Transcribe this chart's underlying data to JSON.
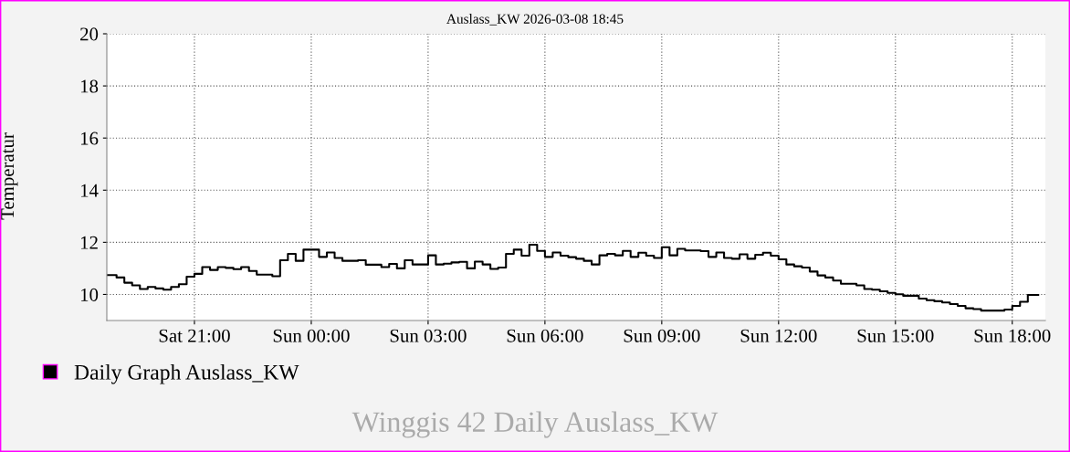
{
  "chart_data": {
    "type": "step",
    "title": "Auslass_KW 2026-03-08 18:45",
    "ylabel": "Temperatur",
    "annotations": [
      "Winggis 42 Daily Auslass_KW"
    ],
    "x": [
      "2026-03-07T18:45",
      "2026-03-07T19:00",
      "2026-03-07T19:12",
      "2026-03-07T19:24",
      "2026-03-07T19:36",
      "2026-03-07T19:48",
      "2026-03-07T20:00",
      "2026-03-07T20:12",
      "2026-03-07T20:24",
      "2026-03-07T20:36",
      "2026-03-07T20:48",
      "2026-03-07T21:00",
      "2026-03-07T21:12",
      "2026-03-07T21:24",
      "2026-03-07T21:36",
      "2026-03-07T21:48",
      "2026-03-07T22:00",
      "2026-03-07T22:12",
      "2026-03-07T22:24",
      "2026-03-07T22:36",
      "2026-03-07T22:48",
      "2026-03-07T23:00",
      "2026-03-07T23:12",
      "2026-03-07T23:24",
      "2026-03-07T23:36",
      "2026-03-07T23:48",
      "2026-03-08T00:00",
      "2026-03-08T00:12",
      "2026-03-08T00:24",
      "2026-03-08T00:36",
      "2026-03-08T00:48",
      "2026-03-08T01:00",
      "2026-03-08T01:12",
      "2026-03-08T01:24",
      "2026-03-08T01:36",
      "2026-03-08T01:48",
      "2026-03-08T02:00",
      "2026-03-08T02:12",
      "2026-03-08T02:24",
      "2026-03-08T02:36",
      "2026-03-08T02:48",
      "2026-03-08T03:00",
      "2026-03-08T03:12",
      "2026-03-08T03:24",
      "2026-03-08T03:36",
      "2026-03-08T03:48",
      "2026-03-08T04:00",
      "2026-03-08T04:12",
      "2026-03-08T04:24",
      "2026-03-08T04:36",
      "2026-03-08T04:48",
      "2026-03-08T05:00",
      "2026-03-08T05:12",
      "2026-03-08T05:24",
      "2026-03-08T05:36",
      "2026-03-08T05:48",
      "2026-03-08T06:00",
      "2026-03-08T06:12",
      "2026-03-08T06:24",
      "2026-03-08T06:36",
      "2026-03-08T06:48",
      "2026-03-08T07:00",
      "2026-03-08T07:12",
      "2026-03-08T07:24",
      "2026-03-08T07:36",
      "2026-03-08T07:48",
      "2026-03-08T08:00",
      "2026-03-08T08:12",
      "2026-03-08T08:24",
      "2026-03-08T08:36",
      "2026-03-08T08:48",
      "2026-03-08T09:00",
      "2026-03-08T09:12",
      "2026-03-08T09:24",
      "2026-03-08T09:36",
      "2026-03-08T09:48",
      "2026-03-08T10:00",
      "2026-03-08T10:12",
      "2026-03-08T10:24",
      "2026-03-08T10:36",
      "2026-03-08T10:48",
      "2026-03-08T11:00",
      "2026-03-08T11:12",
      "2026-03-08T11:24",
      "2026-03-08T11:36",
      "2026-03-08T11:48",
      "2026-03-08T12:00",
      "2026-03-08T12:12",
      "2026-03-08T12:24",
      "2026-03-08T12:36",
      "2026-03-08T12:48",
      "2026-03-08T13:00",
      "2026-03-08T13:12",
      "2026-03-08T13:24",
      "2026-03-08T13:36",
      "2026-03-08T13:48",
      "2026-03-08T14:00",
      "2026-03-08T14:12",
      "2026-03-08T14:24",
      "2026-03-08T14:36",
      "2026-03-08T14:48",
      "2026-03-08T15:00",
      "2026-03-08T15:12",
      "2026-03-08T15:24",
      "2026-03-08T15:36",
      "2026-03-08T15:48",
      "2026-03-08T16:00",
      "2026-03-08T16:12",
      "2026-03-08T16:24",
      "2026-03-08T16:36",
      "2026-03-08T16:48",
      "2026-03-08T17:00",
      "2026-03-08T17:12",
      "2026-03-08T17:24",
      "2026-03-08T17:36",
      "2026-03-08T17:48",
      "2026-03-08T18:00",
      "2026-03-08T18:12",
      "2026-03-08T18:24",
      "2026-03-08T18:36",
      "2026-03-08T18:40"
    ],
    "series": [
      {
        "name": "Daily Graph Auslass_KW",
        "color": "#000000",
        "values": [
          10.74,
          10.65,
          10.45,
          10.35,
          10.21,
          10.29,
          10.23,
          10.18,
          10.29,
          10.39,
          10.68,
          10.79,
          11.05,
          10.94,
          11.05,
          11.02,
          10.97,
          11.05,
          10.9,
          10.76,
          10.76,
          10.7,
          11.31,
          11.56,
          11.29,
          11.72,
          11.72,
          11.44,
          11.61,
          11.4,
          11.29,
          11.29,
          11.31,
          11.14,
          11.14,
          11.05,
          11.17,
          11.0,
          11.31,
          11.15,
          11.15,
          11.5,
          11.15,
          11.18,
          11.23,
          11.25,
          11.0,
          11.26,
          11.15,
          10.98,
          11.03,
          11.56,
          11.72,
          11.49,
          11.91,
          11.67,
          11.44,
          11.61,
          11.49,
          11.43,
          11.37,
          11.29,
          11.15,
          11.5,
          11.56,
          11.5,
          11.67,
          11.44,
          11.6,
          11.49,
          11.4,
          11.81,
          11.5,
          11.75,
          11.69,
          11.69,
          11.66,
          11.44,
          11.61,
          11.4,
          11.37,
          11.54,
          11.37,
          11.52,
          11.6,
          11.49,
          11.35,
          11.15,
          11.08,
          11.03,
          10.88,
          10.73,
          10.65,
          10.53,
          10.41,
          10.41,
          10.35,
          10.21,
          10.18,
          10.12,
          10.06,
          10.01,
          9.95,
          9.95,
          9.84,
          9.78,
          9.74,
          9.69,
          9.63,
          9.56,
          9.47,
          9.44,
          9.38,
          9.38,
          9.38,
          9.42,
          9.56,
          9.72,
          9.98,
          9.98,
          9.98
        ]
      }
    ],
    "xlim": [
      "2026-03-07T18:45",
      "2026-03-08T18:51"
    ],
    "xticks": [
      {
        "value": "2026-03-07T21:00",
        "label": "Sat 21:00"
      },
      {
        "value": "2026-03-08T00:00",
        "label": "Sun 00:00"
      },
      {
        "value": "2026-03-08T03:00",
        "label": "Sun 03:00"
      },
      {
        "value": "2026-03-08T06:00",
        "label": "Sun 06:00"
      },
      {
        "value": "2026-03-08T09:00",
        "label": "Sun 09:00"
      },
      {
        "value": "2026-03-08T12:00",
        "label": "Sun 12:00"
      },
      {
        "value": "2026-03-08T15:00",
        "label": "Sun 15:00"
      },
      {
        "value": "2026-03-08T18:00",
        "label": "Sun 18:00"
      }
    ],
    "ylim": [
      9,
      20
    ],
    "yticks": [
      10,
      12,
      14,
      16,
      18,
      20
    ],
    "grid": true,
    "legend": "bottom left",
    "line_style": "solid"
  }
}
